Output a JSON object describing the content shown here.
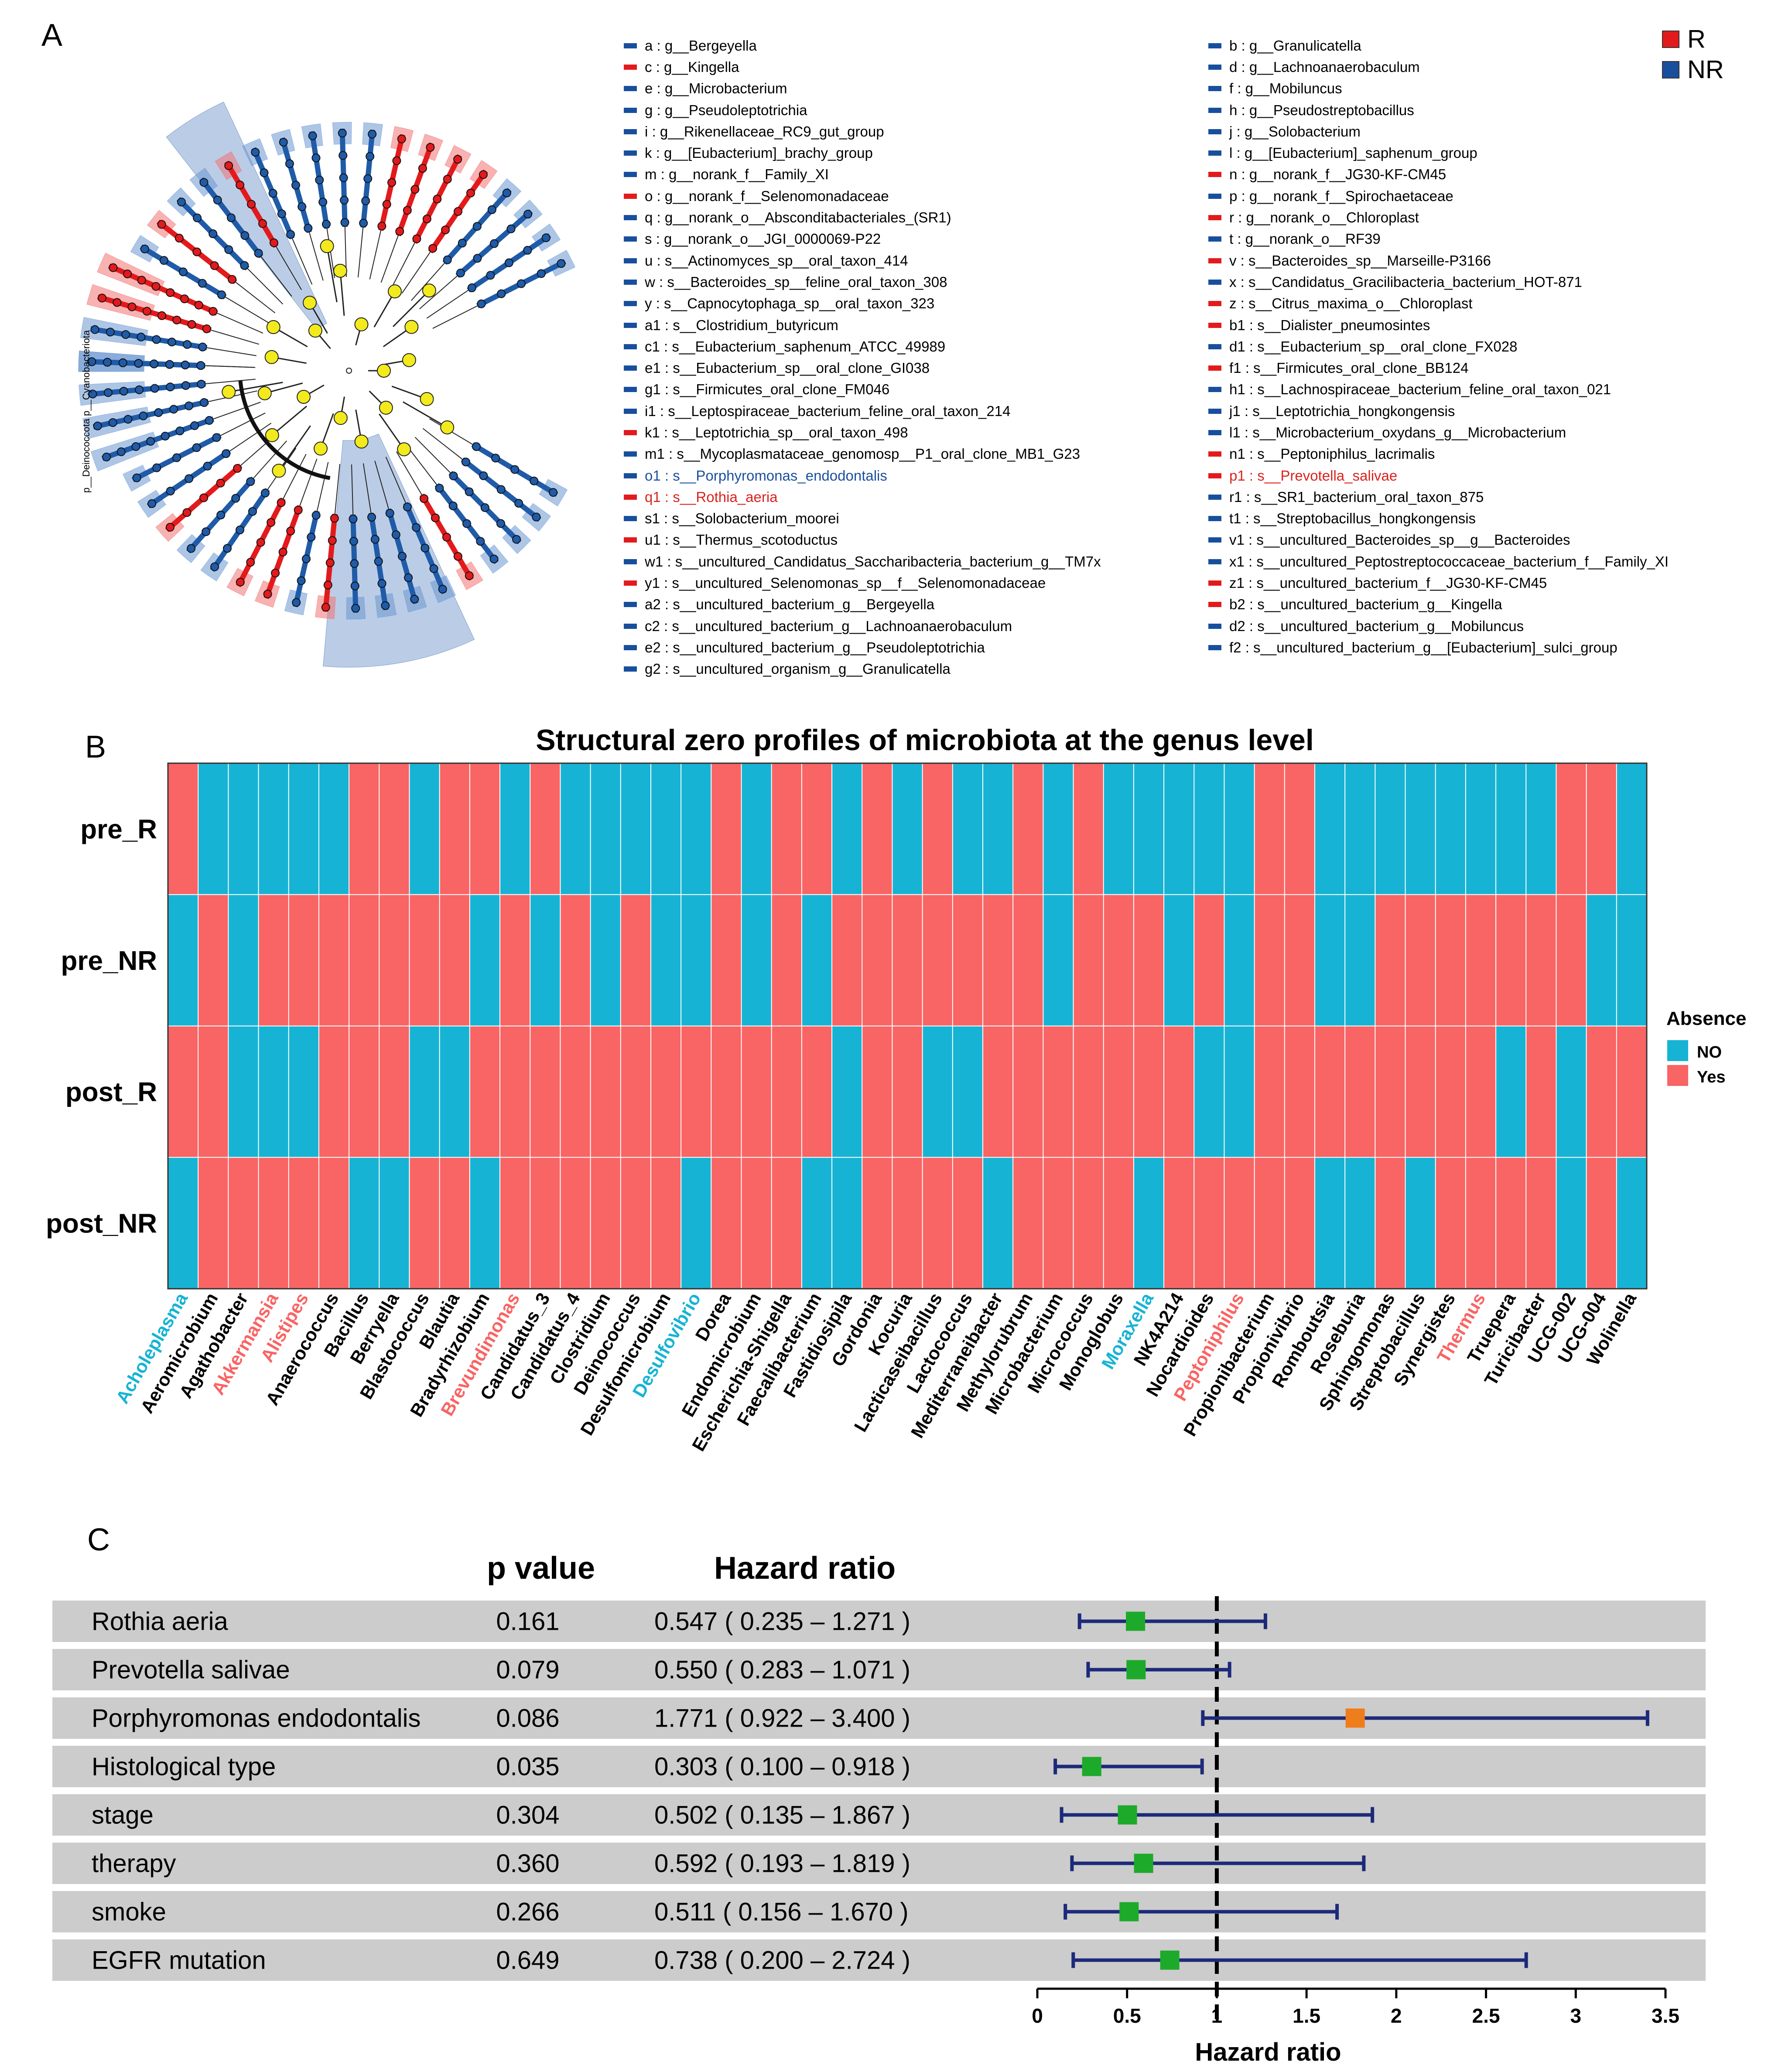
{
  "panels": {
    "a": "A",
    "b": "B",
    "c": "C"
  },
  "colors": {
    "r_group": "#e31a1c",
    "nr_group": "#184f9d",
    "node_yellow": "#f3ea1d",
    "text_blue": "#1b4f9c",
    "text_red": "#d9231d",
    "heat_no": "#17b3d4",
    "heat_yes": "#f96464",
    "forest_green": "#1daa2a",
    "forest_orange": "#f07d1b",
    "forest_line": "#1d2a7a",
    "row_bg": "#cccccc"
  },
  "panel_a": {
    "group_legend": [
      {
        "label": "R",
        "color": "#e31a1c"
      },
      {
        "label": "NR",
        "color": "#184f9d"
      }
    ],
    "tree_labels": {
      "phylum_label": "p__Deinococcota p__Cyanobacteriota"
    },
    "items_left": [
      {
        "text": "a : g__Bergeyella",
        "group": "NR",
        "style": "plain"
      },
      {
        "text": "c : g__Kingella",
        "group": "R",
        "style": "plain"
      },
      {
        "text": "e : g__Microbacterium",
        "group": "NR",
        "style": "plain"
      },
      {
        "text": "g : g__Pseudoleptotrichia",
        "group": "NR",
        "style": "plain"
      },
      {
        "text": "i : g__Rikenellaceae_RC9_gut_group",
        "group": "NR",
        "style": "plain"
      },
      {
        "text": "k : g__[Eubacterium]_brachy_group",
        "group": "NR",
        "style": "plain"
      },
      {
        "text": "m : g__norank_f__Family_XI",
        "group": "NR",
        "style": "plain"
      },
      {
        "text": "o : g__norank_f__Selenomonadaceae",
        "group": "R",
        "style": "plain"
      },
      {
        "text": "q : g__norank_o__Absconditabacteriales_(SR1)",
        "group": "NR",
        "style": "plain"
      },
      {
        "text": "s : g__norank_o__JGI_0000069-P22",
        "group": "NR",
        "style": "plain"
      },
      {
        "text": "u : s__Actinomyces_sp__oral_taxon_414",
        "group": "NR",
        "style": "plain"
      },
      {
        "text": "w : s__Bacteroides_sp__feline_oral_taxon_308",
        "group": "NR",
        "style": "plain"
      },
      {
        "text": "y : s__Capnocytophaga_sp__oral_taxon_323",
        "group": "NR",
        "style": "plain"
      },
      {
        "text": "a1 : s__Clostridium_butyricum",
        "group": "NR",
        "style": "plain"
      },
      {
        "text": "c1 : s__Eubacterium_saphenum_ATCC_49989",
        "group": "NR",
        "style": "plain"
      },
      {
        "text": "e1 : s__Eubacterium_sp__oral_clone_GI038",
        "group": "NR",
        "style": "plain"
      },
      {
        "text": "g1 : s__Firmicutes_oral_clone_FM046",
        "group": "NR",
        "style": "plain"
      },
      {
        "text": "i1 : s__Leptospiraceae_bacterium_feline_oral_taxon_214",
        "group": "NR",
        "style": "plain"
      },
      {
        "text": "k1 : s__Leptotrichia_sp__oral_taxon_498",
        "group": "R",
        "style": "plain"
      },
      {
        "text": "m1 : s__Mycoplasmataceae_genomosp__P1_oral_clone_MB1_G23",
        "group": "NR",
        "style": "plain"
      },
      {
        "text": "o1 : s__Porphyromonas_endodontalis",
        "group": "NR",
        "style": "blue"
      },
      {
        "text": "q1 : s__Rothia_aeria",
        "group": "R",
        "style": "red"
      },
      {
        "text": "s1 : s__Solobacterium_moorei",
        "group": "NR",
        "style": "plain"
      },
      {
        "text": "u1 : s__Thermus_scotoductus",
        "group": "R",
        "style": "plain"
      },
      {
        "text": "w1 : s__uncultured_Candidatus_Saccharibacteria_bacterium_g__TM7x",
        "group": "NR",
        "style": "plain"
      },
      {
        "text": "y1 : s__uncultured_Selenomonas_sp__f__Selenomonadaceae",
        "group": "R",
        "style": "plain"
      },
      {
        "text": "a2 : s__uncultured_bacterium_g__Bergeyella",
        "group": "NR",
        "style": "plain"
      },
      {
        "text": "c2 : s__uncultured_bacterium_g__Lachnoanaerobaculum",
        "group": "NR",
        "style": "plain"
      },
      {
        "text": "e2 : s__uncultured_bacterium_g__Pseudoleptotrichia",
        "group": "NR",
        "style": "plain"
      },
      {
        "text": "g2 : s__uncultured_organism_g__Granulicatella",
        "group": "NR",
        "style": "plain"
      }
    ],
    "items_right": [
      {
        "text": "b : g__Granulicatella",
        "group": "NR",
        "style": "plain"
      },
      {
        "text": "d : g__Lachnoanaerobaculum",
        "group": "NR",
        "style": "plain"
      },
      {
        "text": "f : g__Mobiluncus",
        "group": "NR",
        "style": "plain"
      },
      {
        "text": "h : g__Pseudostreptobacillus",
        "group": "NR",
        "style": "plain"
      },
      {
        "text": "j : g__Solobacterium",
        "group": "NR",
        "style": "plain"
      },
      {
        "text": "l : g__[Eubacterium]_saphenum_group",
        "group": "NR",
        "style": "plain"
      },
      {
        "text": "n : g__norank_f__JG30-KF-CM45",
        "group": "R",
        "style": "plain"
      },
      {
        "text": "p : g__norank_f__Spirochaetaceae",
        "group": "NR",
        "style": "plain"
      },
      {
        "text": "r : g__norank_o__Chloroplast",
        "group": "R",
        "style": "plain"
      },
      {
        "text": "t : g__norank_o__RF39",
        "group": "NR",
        "style": "plain"
      },
      {
        "text": "v : s__Bacteroides_sp__Marseille-P3166",
        "group": "R",
        "style": "plain"
      },
      {
        "text": "x : s__Candidatus_Gracilibacteria_bacterium_HOT-871",
        "group": "NR",
        "style": "plain"
      },
      {
        "text": "z : s__Citrus_maxima_o__Chloroplast",
        "group": "R",
        "style": "plain"
      },
      {
        "text": "b1 : s__Dialister_pneumosintes",
        "group": "R",
        "style": "plain"
      },
      {
        "text": "d1 : s__Eubacterium_sp__oral_clone_FX028",
        "group": "NR",
        "style": "plain"
      },
      {
        "text": "f1 : s__Firmicutes_oral_clone_BB124",
        "group": "R",
        "style": "plain"
      },
      {
        "text": "h1 : s__Lachnospiraceae_bacterium_feline_oral_taxon_021",
        "group": "NR",
        "style": "plain"
      },
      {
        "text": "j1 : s__Leptotrichia_hongkongensis",
        "group": "NR",
        "style": "plain"
      },
      {
        "text": "l1 : s__Microbacterium_oxydans_g__Microbacterium",
        "group": "NR",
        "style": "plain"
      },
      {
        "text": "n1 : s__Peptoniphilus_lacrimalis",
        "group": "R",
        "style": "plain"
      },
      {
        "text": "p1 : s__Prevotella_salivae",
        "group": "R",
        "style": "red"
      },
      {
        "text": "r1 : s__SR1_bacterium_oral_taxon_875",
        "group": "NR",
        "style": "plain"
      },
      {
        "text": "t1 : s__Streptobacillus_hongkongensis",
        "group": "NR",
        "style": "plain"
      },
      {
        "text": "v1 : s__uncultured_Bacteroides_sp__g__Bacteroides",
        "group": "NR",
        "style": "plain"
      },
      {
        "text": "x1 : s__uncultured_Peptostreptococcaceae_bacterium_f__Family_XI",
        "group": "NR",
        "style": "plain"
      },
      {
        "text": "z1 : s__uncultured_bacterium_f__JG30-KF-CM45",
        "group": "R",
        "style": "plain"
      },
      {
        "text": "b2 : s__uncultured_bacterium_g__Kingella",
        "group": "R",
        "style": "plain"
      },
      {
        "text": "d2 : s__uncultured_bacterium_g__Mobiluncus",
        "group": "NR",
        "style": "plain"
      },
      {
        "text": "f2 : s__uncultured_bacterium_g__[Eubacterium]_sulci_group",
        "group": "NR",
        "style": "plain"
      }
    ]
  },
  "chart_data": [
    {
      "type": "heatmap",
      "title": "Structural zero profiles of microbiota at the genus level",
      "rows": [
        "pre_R",
        "pre_NR",
        "post_R",
        "post_NR"
      ],
      "legend_title": "Absence",
      "legend": [
        {
          "label": "NO",
          "value": 0
        },
        {
          "label": "Yes",
          "value": 1
        }
      ],
      "columns": [
        "Acholeplasma",
        "Aeromicrobium",
        "Agathobacter",
        "Akkermansia",
        "Alistipes",
        "Anaerococcus",
        "Bacillus",
        "Berryella",
        "Blastococcus",
        "Blautia",
        "Bradyrhizobium",
        "Brevundimonas",
        "Candidatus_3",
        "Candidatus_4",
        "Clostridium",
        "Deinococcus",
        "Desulfomicrobium",
        "Desulfovibrio",
        "Dorea",
        "Endomicrobium",
        "Escherichia-Shigella",
        "Faecalibacterium",
        "Fastidiosipila",
        "Gordonia",
        "Kocuria",
        "Lacticaseibacillus",
        "Lactococcus",
        "Mediterraneibacter",
        "Methylorubrum",
        "Microbacterium",
        "Micrococcus",
        "Monoglobus",
        "Moraxella",
        "NK4A214",
        "Nocardioides",
        "Peptoniphilus",
        "Propionibacterium",
        "Propionivibrio",
        "Romboutsia",
        "Roseburia",
        "Sphingomonas",
        "Streptobacillus",
        "Synergistes",
        "Thermus",
        "Truepera",
        "Turicibacter",
        "UCG-002",
        "UCG-004",
        "Wolinella"
      ],
      "column_label_colors": [
        "cyan",
        "black",
        "black",
        "red",
        "red",
        "black",
        "black",
        "black",
        "black",
        "black",
        "black",
        "red",
        "black",
        "black",
        "black",
        "black",
        "black",
        "cyan",
        "black",
        "black",
        "black",
        "black",
        "black",
        "black",
        "black",
        "black",
        "black",
        "black",
        "black",
        "black",
        "black",
        "black",
        "cyan",
        "black",
        "black",
        "red",
        "black",
        "black",
        "black",
        "black",
        "black",
        "black",
        "black",
        "red",
        "black",
        "black",
        "black",
        "black",
        "black"
      ],
      "values": [
        [
          1,
          0,
          0,
          0,
          0,
          0,
          1,
          1,
          0,
          1,
          1,
          0,
          1,
          0,
          0,
          0,
          0,
          0,
          1,
          0,
          1,
          1,
          0,
          1,
          0,
          1,
          0,
          0,
          1,
          0,
          1,
          0,
          0,
          0,
          0,
          0,
          1,
          1,
          0,
          0,
          0,
          0,
          0,
          0,
          0,
          0,
          1,
          1,
          0
        ],
        [
          0,
          1,
          0,
          1,
          1,
          1,
          1,
          1,
          1,
          1,
          0,
          1,
          0,
          1,
          0,
          1,
          0,
          0,
          1,
          0,
          1,
          0,
          1,
          1,
          1,
          1,
          1,
          1,
          1,
          0,
          1,
          1,
          1,
          0,
          1,
          0,
          1,
          1,
          0,
          0,
          1,
          1,
          1,
          1,
          1,
          1,
          1,
          0,
          0
        ],
        [
          1,
          1,
          0,
          0,
          0,
          1,
          1,
          1,
          0,
          0,
          1,
          1,
          1,
          1,
          1,
          1,
          1,
          1,
          1,
          1,
          1,
          1,
          0,
          1,
          1,
          0,
          0,
          1,
          1,
          1,
          1,
          1,
          1,
          1,
          0,
          0,
          1,
          1,
          1,
          1,
          1,
          1,
          1,
          1,
          0,
          1,
          0,
          1,
          1
        ],
        [
          0,
          1,
          1,
          1,
          1,
          1,
          0,
          0,
          1,
          1,
          0,
          1,
          1,
          1,
          1,
          1,
          1,
          0,
          1,
          1,
          1,
          0,
          0,
          1,
          1,
          1,
          1,
          0,
          1,
          1,
          1,
          1,
          0,
          1,
          1,
          1,
          1,
          1,
          0,
          0,
          1,
          0,
          1,
          1,
          1,
          1,
          0,
          1,
          0
        ]
      ]
    },
    {
      "type": "forest",
      "header_pvalue": "p value",
      "header_hr": "Hazard ratio",
      "xlabel": "Hazard ratio",
      "xlim": [
        0,
        3.5
      ],
      "xticks": [
        "0",
        "0.5",
        "1",
        "1.5",
        "2",
        "2.5",
        "3",
        "3.5"
      ],
      "reference_line": 1,
      "rows": [
        {
          "label": "Rothia aeria",
          "p": "0.161",
          "hr_text": "0.547 ( 0.235 – 1.271 )",
          "hr": 0.547,
          "lo": 0.235,
          "hi": 1.271,
          "marker": "green"
        },
        {
          "label": "Prevotella salivae",
          "p": "0.079",
          "hr_text": "0.550 ( 0.283 – 1.071 )",
          "hr": 0.55,
          "lo": 0.283,
          "hi": 1.071,
          "marker": "green"
        },
        {
          "label": "Porphyromonas endodontalis",
          "p": "0.086",
          "hr_text": "1.771 ( 0.922 – 3.400 )",
          "hr": 1.771,
          "lo": 0.922,
          "hi": 3.4,
          "marker": "orange"
        },
        {
          "label": "Histological type",
          "p": "0.035",
          "hr_text": "0.303 ( 0.100 – 0.918 )",
          "hr": 0.303,
          "lo": 0.1,
          "hi": 0.918,
          "marker": "green"
        },
        {
          "label": "stage",
          "p": "0.304",
          "hr_text": "0.502 ( 0.135 – 1.867 )",
          "hr": 0.502,
          "lo": 0.135,
          "hi": 1.867,
          "marker": "green"
        },
        {
          "label": "therapy",
          "p": "0.360",
          "hr_text": "0.592 ( 0.193 – 1.819 )",
          "hr": 0.592,
          "lo": 0.193,
          "hi": 1.819,
          "marker": "green"
        },
        {
          "label": "smoke",
          "p": "0.266",
          "hr_text": "0.511 ( 0.156 – 1.670 )",
          "hr": 0.511,
          "lo": 0.156,
          "hi": 1.67,
          "marker": "green"
        },
        {
          "label": "EGFR mutation",
          "p": "0.649",
          "hr_text": "0.738 ( 0.200 – 2.724 )",
          "hr": 0.738,
          "lo": 0.2,
          "hi": 2.724,
          "marker": "green"
        }
      ]
    }
  ]
}
